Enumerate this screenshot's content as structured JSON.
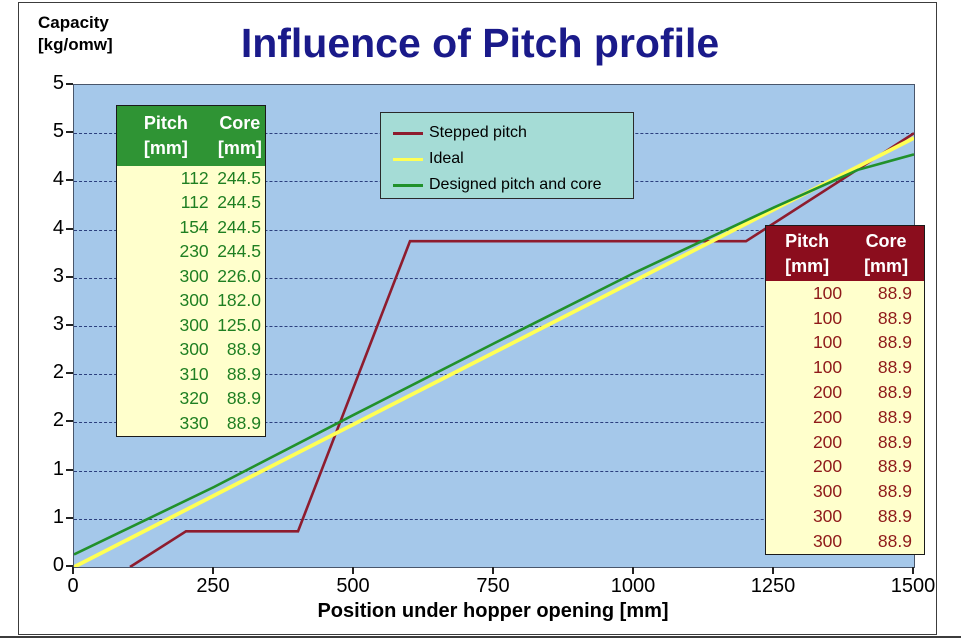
{
  "slide": {
    "y_axis_title_line1": "Capacity",
    "y_axis_title_line2": "[kg/omw]",
    "title": "Influence of Pitch profile",
    "x_axis_title": "Position under hopper opening [mm]"
  },
  "chart_data": {
    "type": "line",
    "title": "Influence of Pitch profile",
    "xlabel": "Position under hopper opening [mm]",
    "ylabel": "Capacity [kg/omw]",
    "xlim": [
      0,
      1500
    ],
    "ylim": [
      0,
      5
    ],
    "x_ticks": [
      0,
      250,
      500,
      750,
      1000,
      1250,
      1500
    ],
    "y_tick_interval": 0.5,
    "y_tick_labels_top_to_bottom": [
      "5",
      "5",
      "4",
      "4",
      "3",
      "3",
      "2",
      "2",
      "1",
      "1",
      "0"
    ],
    "grid": "horizontal-dashed",
    "legend_position": "top-center",
    "series": [
      {
        "name": "Stepped pitch",
        "color": "#8e1c2e",
        "points": [
          [
            100,
            0
          ],
          [
            200,
            0.37
          ],
          [
            400,
            0.37
          ],
          [
            600,
            3.38
          ],
          [
            1200,
            3.38
          ],
          [
            1500,
            4.5
          ]
        ]
      },
      {
        "name": "Ideal",
        "color": "#ffff55",
        "points": [
          [
            0,
            0
          ],
          [
            1500,
            4.45
          ]
        ]
      },
      {
        "name": "Designed pitch and core",
        "color": "#21912b",
        "points": [
          [
            0,
            0.13
          ],
          [
            250,
            0.83
          ],
          [
            500,
            1.58
          ],
          [
            750,
            2.32
          ],
          [
            1000,
            3.05
          ],
          [
            1250,
            3.73
          ],
          [
            1400,
            4.12
          ],
          [
            1500,
            4.28
          ]
        ]
      }
    ]
  },
  "left_table": {
    "header": {
      "col1_line1": "Pitch",
      "col1_line2": "[mm]",
      "col2_line1": "Core",
      "col2_line2": "[mm]"
    },
    "rows": [
      [
        "112",
        "244.5"
      ],
      [
        "112",
        "244.5"
      ],
      [
        "154",
        "244.5"
      ],
      [
        "230",
        "244.5"
      ],
      [
        "300",
        "226.0"
      ],
      [
        "300",
        "182.0"
      ],
      [
        "300",
        "125.0"
      ],
      [
        "300",
        "88.9"
      ],
      [
        "310",
        "88.9"
      ],
      [
        "320",
        "88.9"
      ],
      [
        "330",
        "88.9"
      ]
    ],
    "header_bg": "#2f9434",
    "header_text": "#ffffff",
    "body_bg": "#ffffcc",
    "text_color": "#1f7f22"
  },
  "right_table": {
    "header": {
      "col1_line1": "Pitch",
      "col1_line2": "[mm]",
      "col2_line1": "Core",
      "col2_line2": "[mm]"
    },
    "rows": [
      [
        "100",
        "88.9"
      ],
      [
        "100",
        "88.9"
      ],
      [
        "100",
        "88.9"
      ],
      [
        "100",
        "88.9"
      ],
      [
        "200",
        "88.9"
      ],
      [
        "200",
        "88.9"
      ],
      [
        "200",
        "88.9"
      ],
      [
        "200",
        "88.9"
      ],
      [
        "300",
        "88.9"
      ],
      [
        "300",
        "88.9"
      ],
      [
        "300",
        "88.9"
      ]
    ],
    "header_bg": "#8b0d1d",
    "header_text": "#ffffff",
    "body_bg": "#ffffcc",
    "text_color": "#8f1a1a"
  },
  "colors": {
    "title": "#1a1a8a",
    "plot_bg": "#a5c8ea",
    "gridline": "#2b3f7e",
    "legend_bg": "#a5dcd6",
    "axis": "#222222"
  }
}
